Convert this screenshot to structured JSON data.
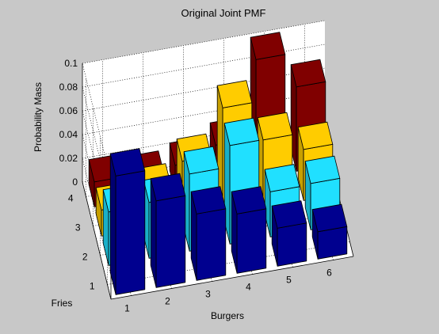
{
  "window": {
    "background": "#c8c8c8"
  },
  "chart_data": {
    "type": "bar3d",
    "title": "Original Joint PMF",
    "xlabel": "Burgers",
    "ylabel": "Fries",
    "zlabel": "Probability Mass",
    "x_ticks": [
      "1",
      "2",
      "3",
      "4",
      "5",
      "6"
    ],
    "y_ticks": [
      "1",
      "2",
      "3",
      "4"
    ],
    "z_ticks": [
      "0",
      "0.02",
      "0.04",
      "0.06",
      "0.08",
      "0.1"
    ],
    "zlim": [
      0,
      0.1
    ],
    "grid": true,
    "legend": "none",
    "series": [
      {
        "fries": 1,
        "color": "#00008f",
        "values": [
          0.1,
          0.073,
          0.056,
          0.05,
          0.032,
          0.023
        ]
      },
      {
        "fries": 2,
        "color": "#20e0ff",
        "values": [
          0.045,
          0.047,
          0.065,
          0.083,
          0.038,
          0.039
        ]
      },
      {
        "fries": 3,
        "color": "#ffcc00",
        "values": [
          0.022,
          0.032,
          0.051,
          0.09,
          0.057,
          0.043
        ]
      },
      {
        "fries": 4,
        "color": "#800000",
        "values": [
          0.021,
          0.018,
          0.023,
          0.034,
          0.1,
          0.071
        ]
      }
    ]
  }
}
